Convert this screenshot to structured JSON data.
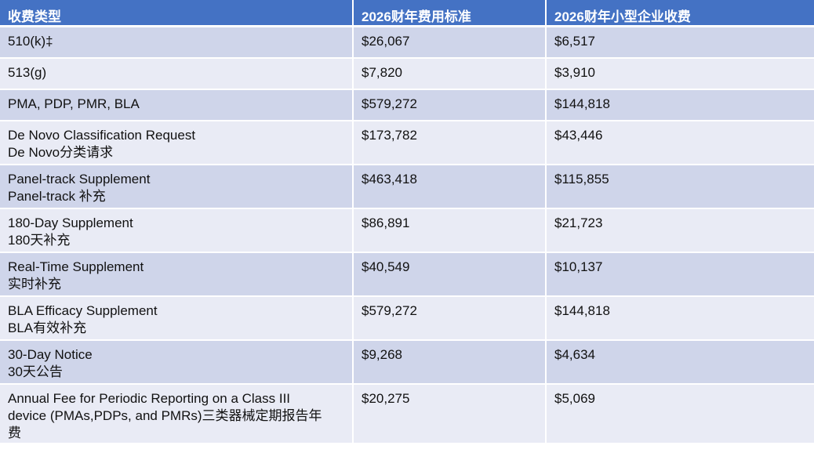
{
  "header": {
    "col1": "收费类型",
    "col2": "2026财年费用标准",
    "col3": "2026财年小型企业收费"
  },
  "rows": [
    {
      "type_lines": [
        "510(k)‡"
      ],
      "standard_fee": "$26,067",
      "small_business_fee": "$6,517"
    },
    {
      "type_lines": [
        "513(g)"
      ],
      "standard_fee": "$7,820",
      "small_business_fee": "$3,910"
    },
    {
      "type_lines": [
        "PMA, PDP, PMR, BLA"
      ],
      "standard_fee": "$579,272",
      "small_business_fee": "$144,818"
    },
    {
      "type_lines": [
        "De Novo Classification Request",
        "De Novo分类请求"
      ],
      "standard_fee": "$173,782",
      "small_business_fee": "$43,446"
    },
    {
      "type_lines": [
        "Panel-track Supplement",
        "Panel-track 补充"
      ],
      "standard_fee": "$463,418",
      "small_business_fee": "$115,855"
    },
    {
      "type_lines": [
        "180-Day Supplement",
        "180天补充"
      ],
      "standard_fee": "$86,891",
      "small_business_fee": "$21,723"
    },
    {
      "type_lines": [
        "Real-Time Supplement",
        "实时补充"
      ],
      "standard_fee": "$40,549",
      "small_business_fee": "$10,137"
    },
    {
      "type_lines": [
        "BLA Efficacy Supplement",
        "BLA有效补充"
      ],
      "standard_fee": "$579,272",
      "small_business_fee": "$144,818"
    },
    {
      "type_lines": [
        "30-Day Notice",
        "30天公告"
      ],
      "standard_fee": "$9,268",
      "small_business_fee": "$4,634"
    },
    {
      "type_lines": [
        "Annual Fee for Periodic Reporting on a Class III",
        "device (PMAs,PDPs, and PMRs)三类器械定期报告年",
        "费"
      ],
      "standard_fee": "$20,275",
      "small_business_fee": "$5,069"
    }
  ]
}
